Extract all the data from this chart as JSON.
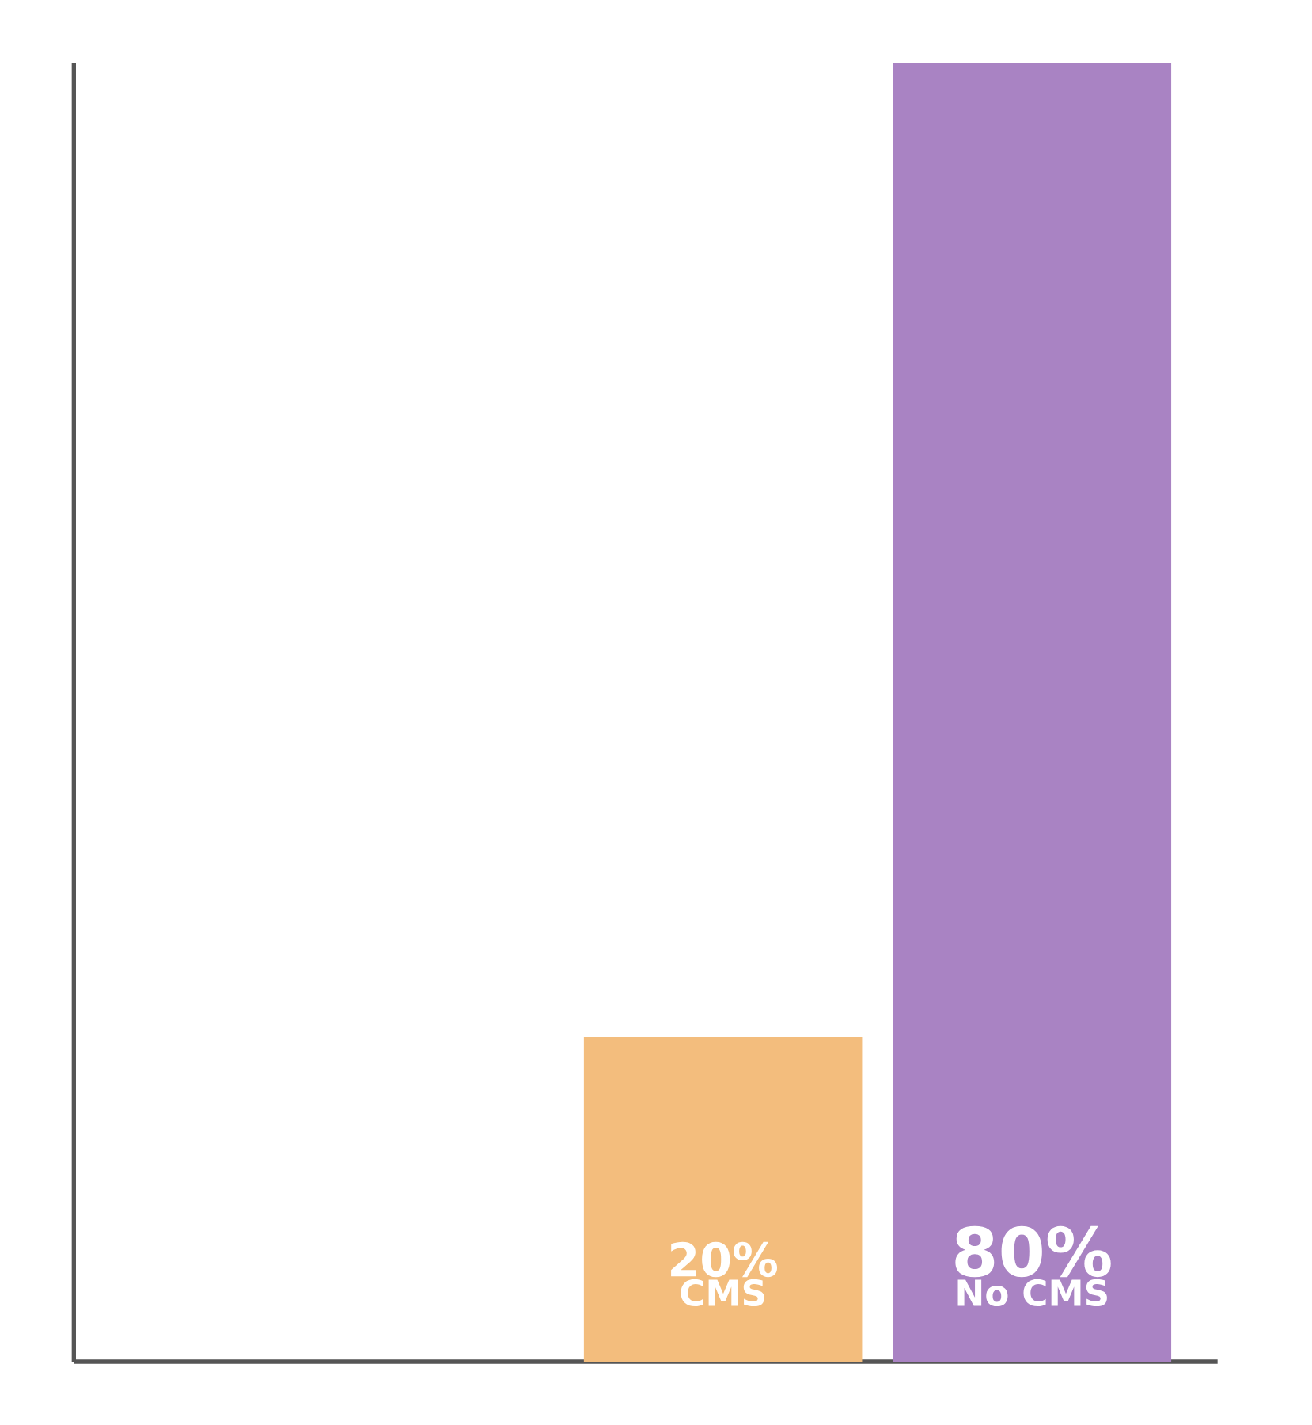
{
  "chart_data": {
    "type": "bar",
    "categories": [
      "CMS",
      "No CMS"
    ],
    "values": [
      20,
      80
    ],
    "value_labels": [
      "20%",
      "80%"
    ],
    "colors": [
      "#f3bd7d",
      "#a983c3"
    ]
  }
}
